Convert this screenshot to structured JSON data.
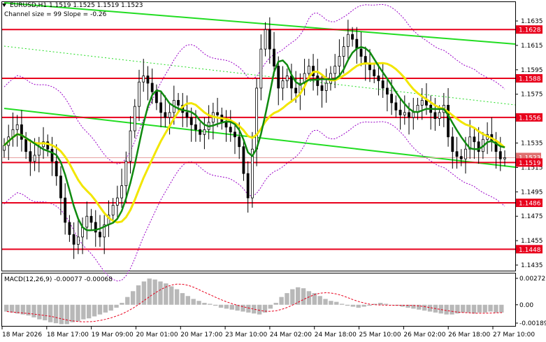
{
  "chart_header": {
    "symbol_line": "EURUSD,H1  1.1519 1.1525 1.1519 1.1523",
    "indicator_line": "Channel size = 99 Slope = -0.26"
  },
  "macd_header": "MACD(12,26,9) -0.00077 -0.00068",
  "price_axis": {
    "ticks": [
      "1.1635",
      "1.1615",
      "1.1595",
      "1.1575",
      "1.1555",
      "1.1535",
      "1.1515",
      "1.1495",
      "1.1475",
      "1.1455",
      "1.1435"
    ],
    "levels": [
      {
        "label": "1.1628",
        "value": 1.1628,
        "color": "#e8001c"
      },
      {
        "label": "1.1588",
        "value": 1.1588,
        "color": "#e8001c"
      },
      {
        "label": "1.1556",
        "value": 1.1556,
        "color": "#e8001c"
      },
      {
        "label": "1.1519",
        "value": 1.1519,
        "color": "#e8001c"
      },
      {
        "label": "1.1486",
        "value": 1.1486,
        "color": "#e8001c"
      },
      {
        "label": "1.1448",
        "value": 1.1448,
        "color": "#e8001c"
      }
    ],
    "current_price_partial": "1.1523"
  },
  "macd_axis": {
    "ticks": [
      "0.00272",
      "0.00",
      "-0.00189"
    ]
  },
  "time_axis": {
    "labels": [
      "18 Mar 2026",
      "18 Mar 17:00",
      "19 Mar 09:00",
      "20 Mar 01:00",
      "20 Mar 17:00",
      "23 Mar 10:00",
      "24 Mar 02:00",
      "24 Mar 18:00",
      "25 Mar 10:00",
      "26 Mar 02:00",
      "26 Mar 18:00",
      "27 Mar 10:00"
    ]
  },
  "colors": {
    "candles": "#000000",
    "ma_fast": "#0f8a0f",
    "ma_slow": "#f2e600",
    "channel": "#22dd22",
    "envelope": "#9a00c8",
    "level": "#e8001c",
    "macd_hist": "#b8b8b8",
    "macd_signal": "#e8001c"
  },
  "chart_data": {
    "type": "candlestick",
    "symbol": "EURUSD",
    "timeframe": "H1",
    "ohlc_last": {
      "open": 1.1519,
      "high": 1.1525,
      "low": 1.1519,
      "close": 1.1523
    },
    "y_range": [
      1.143,
      1.1648
    ],
    "closes": [
      1.1533,
      1.154,
      1.1546,
      1.155,
      1.1538,
      1.1528,
      1.152,
      1.1525,
      1.1532,
      1.1536,
      1.153,
      1.152,
      1.1508,
      1.149,
      1.147,
      1.146,
      1.1452,
      1.1458,
      1.1466,
      1.1475,
      1.147,
      1.1462,
      1.1458,
      1.1468,
      1.1476,
      1.1484,
      1.149,
      1.15,
      1.152,
      1.1545,
      1.1565,
      1.1585,
      1.159,
      1.1584,
      1.1577,
      1.1568,
      1.156,
      1.1556,
      1.156,
      1.157,
      1.1566,
      1.156,
      1.1556,
      1.155,
      1.1546,
      1.1542,
      1.1546,
      1.1552,
      1.156,
      1.1558,
      1.1552,
      1.1548,
      1.1544,
      1.154,
      1.1532,
      1.151,
      1.149,
      1.153,
      1.158,
      1.1612,
      1.1628,
      1.1612,
      1.1598,
      1.158,
      1.1586,
      1.159,
      1.158,
      1.1576,
      1.1584,
      1.1592,
      1.1598,
      1.159,
      1.1582,
      1.1578,
      1.1584,
      1.1592,
      1.1598,
      1.1606,
      1.1614,
      1.1624,
      1.162,
      1.1612,
      1.1606,
      1.16,
      1.1595,
      1.159,
      1.1586,
      1.158,
      1.1575,
      1.1568,
      1.1562,
      1.1558,
      1.156,
      1.1556,
      1.156,
      1.1566,
      1.157,
      1.1566,
      1.156,
      1.1555,
      1.156,
      1.1566,
      1.154,
      1.1528,
      1.1524,
      1.1522,
      1.153,
      1.154,
      1.1536,
      1.1528,
      1.1538,
      1.1542,
      1.1536,
      1.1528,
      1.1522,
      1.1523
    ],
    "macd": {
      "histogram": [
        -0.0007,
        -0.0008,
        -0.0009,
        -0.001,
        -0.0011,
        -0.0013,
        -0.0015,
        -0.0016,
        -0.0018,
        -0.0019,
        -0.002,
        -0.002,
        -0.0018,
        -0.0017,
        -0.0015,
        -0.0014,
        -0.0012,
        -0.001,
        -0.0008,
        -0.0006,
        -0.0003,
        0.0002,
        0.0008,
        0.0014,
        0.002,
        0.0024,
        0.0027,
        0.0026,
        0.0024,
        0.0022,
        0.0019,
        0.0016,
        0.0012,
        0.0009,
        0.0006,
        0.0004,
        0.0002,
        0.0001,
        -0.0001,
        -0.0003,
        -0.0004,
        -0.0005,
        -0.0006,
        -0.0007,
        -0.0008,
        -0.0009,
        -0.001,
        -0.0008,
        -0.0004,
        0.0002,
        0.0008,
        0.0012,
        0.0016,
        0.0018,
        0.0017,
        0.0014,
        0.0012,
        0.0009,
        0.0006,
        0.0004,
        0.0003,
        0.0001,
        -0.0001,
        -0.0002,
        -0.0003,
        -0.0002,
        -0.0001,
        0.0001,
        0.0002,
        0.0001,
        0.0,
        -0.0001,
        -0.0002,
        -0.0003,
        -0.0004,
        -0.0005,
        -0.0006,
        -0.0007,
        -0.0008,
        -0.0009,
        -0.001,
        -0.001,
        -0.0009,
        -0.0008,
        -0.0008,
        -0.0009,
        -0.0008,
        -0.0008,
        -0.0007,
        -0.0008,
        -0.0008
      ],
      "y_range": [
        -0.00189,
        0.00272
      ]
    }
  }
}
